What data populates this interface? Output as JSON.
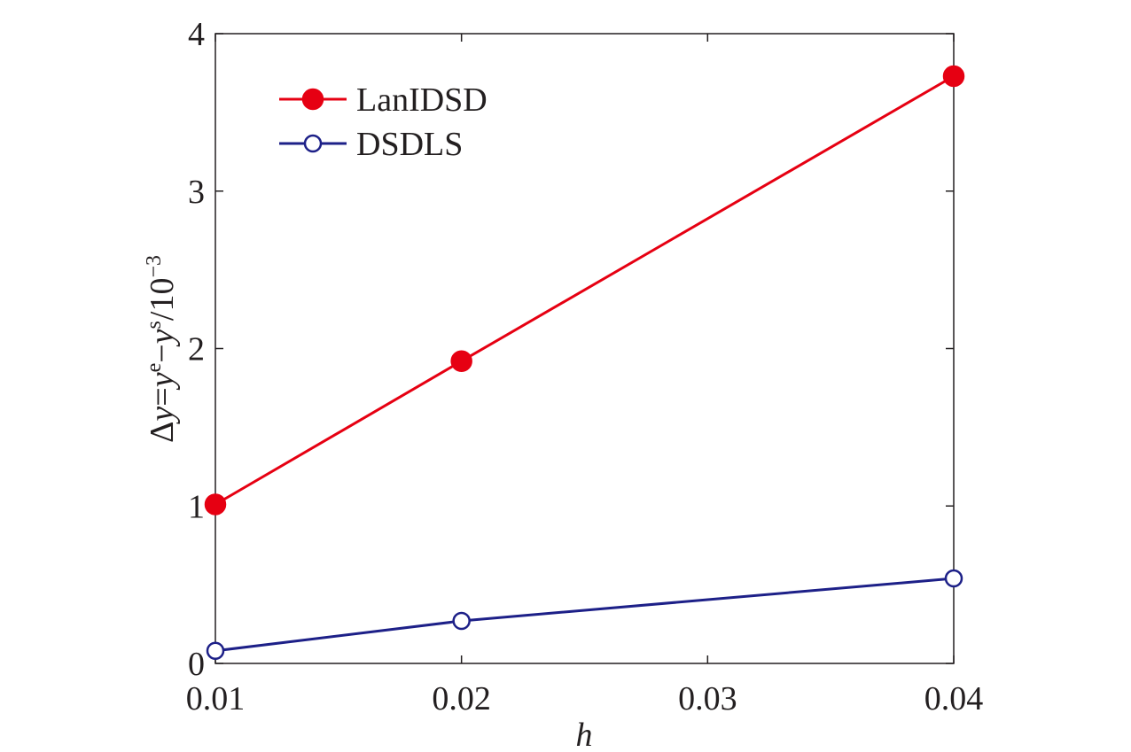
{
  "chart_data": {
    "type": "line",
    "title": "",
    "xlabel": "h",
    "ylabel": {
      "delta": "Δ",
      "y1": "y",
      "eq": "=",
      "y2": "y",
      "sup_e": "e",
      "minus": "−",
      "y3": "y",
      "sup_s": "s",
      "unit": "/10",
      "unit_exp": "−3"
    },
    "x": [
      0.01,
      0.02,
      0.04
    ],
    "xlim": [
      0.01,
      0.04
    ],
    "ylim": [
      0,
      4
    ],
    "xticks": [
      "0.01",
      "0.02",
      "0.03",
      "0.04"
    ],
    "xtick_values": [
      0.01,
      0.02,
      0.03,
      0.04
    ],
    "yticks": [
      "0",
      "1",
      "2",
      "3",
      "4"
    ],
    "ytick_values": [
      0,
      1,
      2,
      3,
      4
    ],
    "grid": false,
    "legend_position": "top-left",
    "series": [
      {
        "name": "LanIDSD",
        "values": [
          1.01,
          1.92,
          3.73
        ],
        "color": "#e60012",
        "marker": "filled-circle"
      },
      {
        "name": "DSDLS",
        "values": [
          0.08,
          0.27,
          0.54
        ],
        "color": "#1d2088",
        "marker": "open-circle"
      }
    ]
  }
}
